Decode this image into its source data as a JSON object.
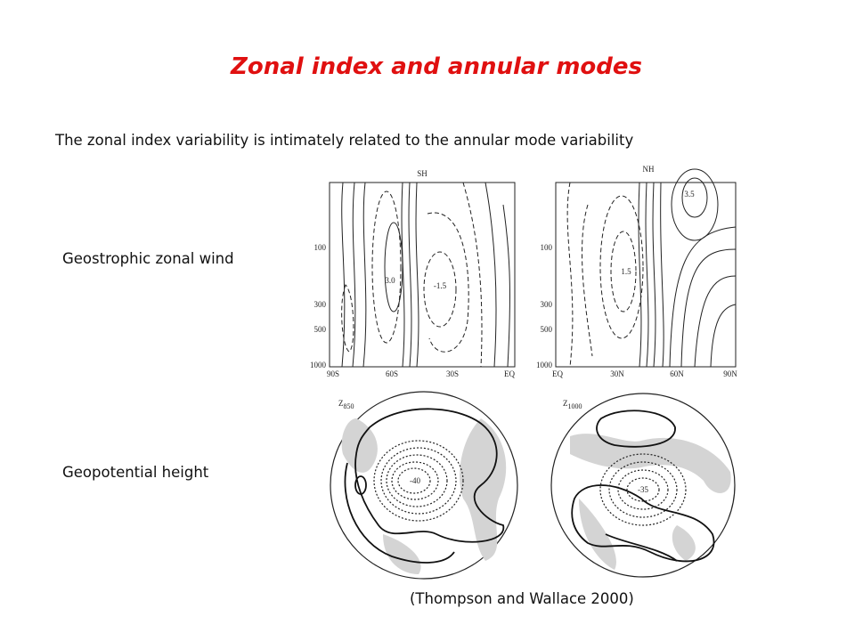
{
  "title": "Zonal index and annular modes",
  "subtitle": "The zonal index variability is intimately related to the annular mode variability",
  "rows": [
    {
      "label": "Geostrophic zonal wind"
    },
    {
      "label": "Geopotential height"
    }
  ],
  "figures": {
    "sh": {
      "title": "SH",
      "pressure_labels": [
        "100",
        "300",
        "500",
        "1000"
      ],
      "lat_labels": [
        "90S",
        "60S",
        "30S",
        "EQ"
      ],
      "contour_labels": [
        "3.0",
        "-1.5"
      ]
    },
    "nh": {
      "title": "NH",
      "pressure_labels": [
        "100",
        "300",
        "500",
        "1000"
      ],
      "lat_labels": [
        "EQ",
        "30N",
        "60N",
        "90N"
      ],
      "contour_labels": [
        "3.5",
        "1.5"
      ]
    },
    "z850": {
      "symbol": "Z",
      "level": "850",
      "contour_labels": [
        "-40"
      ]
    },
    "z1000": {
      "symbol": "Z",
      "level": "1000",
      "contour_labels": [
        "-35"
      ]
    }
  },
  "citation": "(Thompson and Wallace 2000)"
}
